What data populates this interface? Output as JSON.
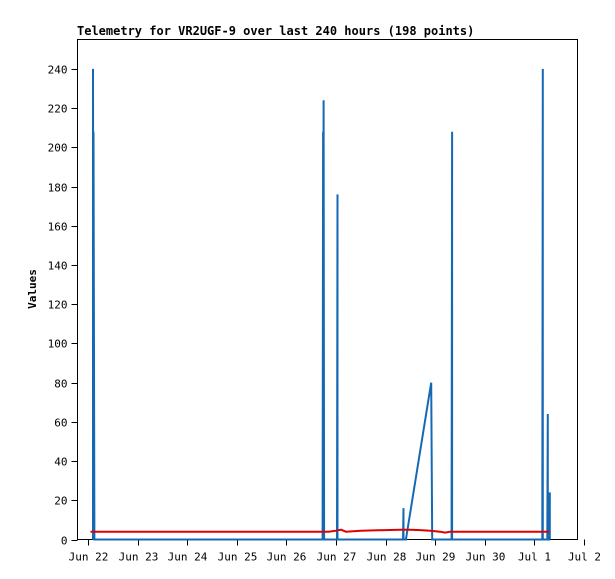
{
  "chart_data": {
    "type": "line",
    "title": "Telemetry for VR2UGF-9 over last 240 hours (198 points)",
    "xlabel": "",
    "ylabel": "Values",
    "ylim": [
      0,
      255
    ],
    "yticks": [
      0,
      20,
      40,
      60,
      80,
      100,
      120,
      140,
      160,
      180,
      200,
      220,
      240
    ],
    "xlim": [
      0,
      10
    ],
    "xtick_labels": [
      "Jun 22",
      "Jun 23",
      "Jun 24",
      "Jun 25",
      "Jun 26",
      "Jun 27",
      "Jun 28",
      "Jun 29",
      "Jun 30",
      "Jul 1",
      "Jul 2"
    ],
    "grid": false,
    "legend": "none",
    "series": [
      {
        "color": "#1569b4",
        "x": [
          0.1,
          0.1,
          0.11,
          0.11,
          0.13,
          0.13,
          0.15,
          4.73,
          4.74,
          4.74,
          4.75,
          4.76,
          4.76,
          4.78,
          5.02,
          5.03,
          5.03,
          5.05,
          6.35,
          6.36,
          6.36,
          6.41,
          6.92,
          6.94,
          7.33,
          7.33,
          7.34,
          7.34,
          7.36,
          9.16,
          9.17,
          9.17,
          9.19,
          9.26,
          9.27,
          9.27,
          9.29,
          9.3,
          9.31,
          9.31
        ],
        "y": [
          0,
          240,
          0,
          208,
          0,
          0,
          0,
          0,
          208,
          0,
          224,
          0,
          0,
          0,
          0,
          176,
          0,
          0,
          0,
          16,
          0,
          0,
          80,
          0,
          0,
          16,
          208,
          0,
          0,
          0,
          240,
          0,
          0,
          0,
          64,
          0,
          0,
          0,
          24,
          0
        ]
      },
      {
        "color": "#dd0000",
        "x": [
          0.05,
          4.72,
          4.85,
          5.0,
          5.1,
          5.2,
          5.5,
          6.0,
          6.3,
          6.5,
          6.7,
          6.9,
          7.1,
          7.2,
          7.3,
          7.5,
          8.5,
          9.3
        ],
        "y": [
          4,
          4,
          4,
          4.5,
          5,
          4,
          4.5,
          4.8,
          5,
          5,
          4.8,
          4.5,
          4,
          3.5,
          4,
          4,
          4,
          4
        ]
      }
    ]
  }
}
